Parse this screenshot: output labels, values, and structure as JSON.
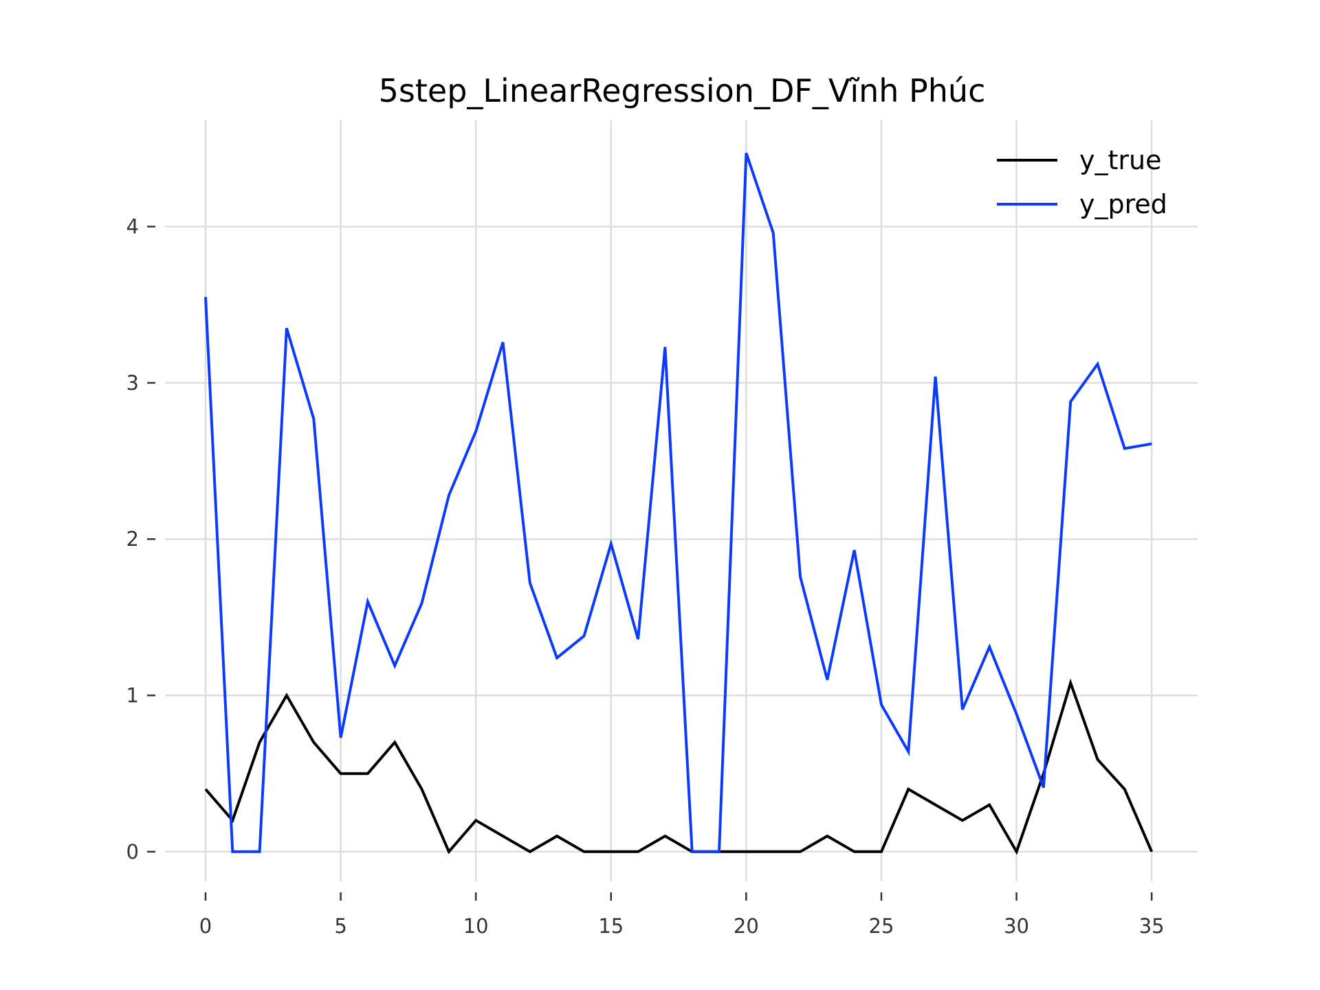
{
  "chart_data": {
    "type": "line",
    "title": "5step_LinearRegression_DF_Vĩnh Phúc",
    "xlabel": "",
    "ylabel": "",
    "x": [
      0,
      1,
      2,
      3,
      4,
      5,
      6,
      7,
      8,
      9,
      10,
      11,
      12,
      13,
      14,
      15,
      16,
      17,
      18,
      19,
      20,
      21,
      22,
      23,
      24,
      25,
      26,
      27,
      28,
      29,
      30,
      31,
      32,
      33,
      34,
      35
    ],
    "xlim": [
      -1.5,
      36.7
    ],
    "ylim": [
      -0.19,
      4.68
    ],
    "xticks": [
      0,
      5,
      10,
      15,
      20,
      25,
      30,
      35
    ],
    "xtick_labels": [
      "0",
      "5",
      "10",
      "15",
      "20",
      "25",
      "30",
      "35"
    ],
    "yticks": [
      0,
      1,
      2,
      3,
      4
    ],
    "ytick_labels": [
      "0",
      "1",
      "2",
      "3",
      "4"
    ],
    "grid": true,
    "legend_position": "top-right",
    "series": [
      {
        "name": "y_true",
        "color": "#000000",
        "values": [
          0.4,
          0.2,
          0.7,
          1.0,
          0.7,
          0.5,
          0.5,
          0.7,
          0.4,
          0.0,
          0.2,
          0.1,
          0.0,
          0.1,
          0.0,
          0.0,
          0.0,
          0.1,
          0.0,
          0.0,
          0.0,
          0.0,
          0.0,
          0.1,
          0.0,
          0.0,
          0.4,
          0.3,
          0.2,
          0.3,
          0.0,
          0.5,
          1.08,
          0.59,
          0.4,
          0.0
        ]
      },
      {
        "name": "y_pred",
        "color": "#0b3bff",
        "values": [
          3.55,
          0.0,
          0.0,
          3.35,
          2.77,
          0.73,
          1.6,
          1.19,
          1.59,
          2.28,
          2.69,
          3.26,
          1.72,
          1.24,
          1.38,
          1.97,
          1.36,
          3.23,
          0.0,
          0.0,
          4.47,
          3.96,
          1.76,
          1.1,
          1.93,
          0.94,
          0.64,
          3.04,
          0.91,
          1.31,
          0.88,
          0.41,
          2.88,
          3.12,
          2.58,
          2.61
        ]
      }
    ]
  }
}
